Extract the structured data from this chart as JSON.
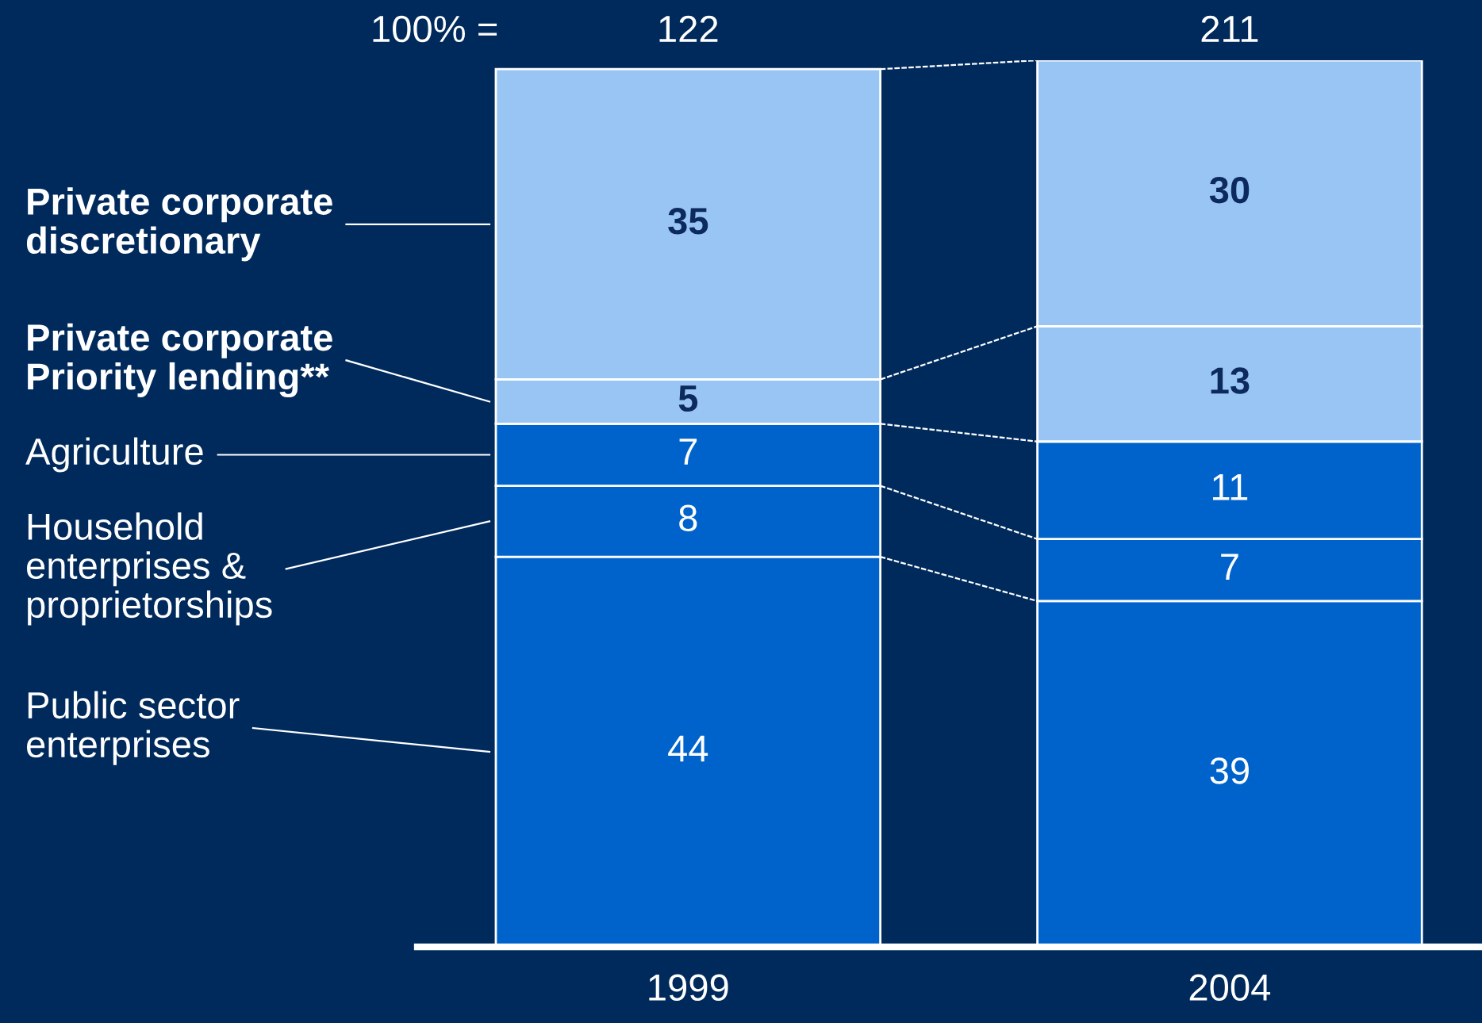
{
  "chart_data": {
    "type": "bar",
    "stacked": true,
    "data_labels": true,
    "categories": [
      "1999",
      "2004"
    ],
    "series": [
      {
        "name": "Public sector\nenterprises",
        "color": "#0063cc",
        "values": [
          44,
          39
        ]
      },
      {
        "name": "Household\nenterprises &\nproprietorships",
        "color": "#0063cc",
        "values": [
          8,
          7
        ]
      },
      {
        "name": "Agriculture",
        "color": "#0063cc",
        "values": [
          7,
          11
        ]
      },
      {
        "name": "Private corporate\nPriority lending**",
        "color": "#99c5f5",
        "values": [
          5,
          13
        ]
      },
      {
        "name": "Private corporate\ndiscretionary",
        "color": "#99c5f5",
        "values": [
          35,
          30
        ]
      }
    ],
    "legend": "left",
    "annotations": [
      "100% =",
      "122",
      "211"
    ]
  }
}
